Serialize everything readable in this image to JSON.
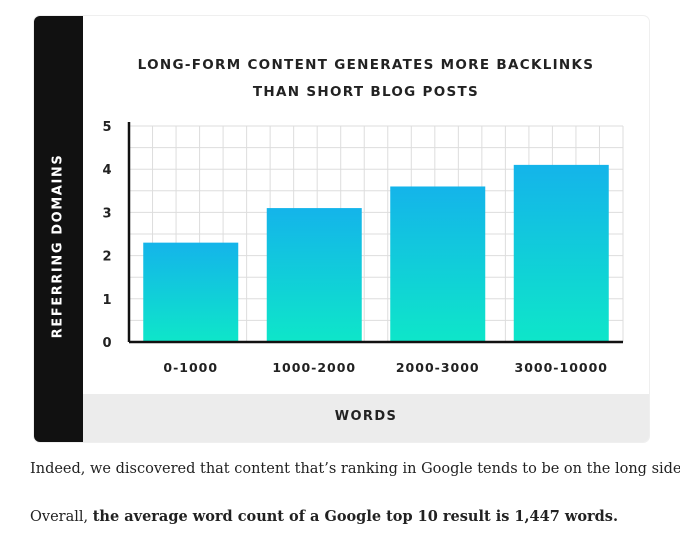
{
  "chart_data": {
    "type": "bar",
    "title_line1": "LONG-FORM CONTENT GENERATES MORE BACKLINKS",
    "title_line2": "THAN SHORT BLOG POSTS",
    "xlabel": "WORDS",
    "ylabel": "REFERRING DOMAINS",
    "categories": [
      "0-1000",
      "1000-2000",
      "2000-3000",
      "3000-10000"
    ],
    "values": [
      2.3,
      3.1,
      3.6,
      4.1
    ],
    "yticks": [
      "0",
      "1",
      "2",
      "3",
      "4",
      "5"
    ],
    "ylim": [
      0,
      5
    ],
    "grid": true,
    "colors": {
      "bar_top": "#14b4ea",
      "bar_bottom": "#0ee6c9",
      "grid": "#dddddd",
      "axis": "#111111"
    }
  },
  "text": {
    "para1": "Indeed, we discovered that content that’s ranking in Google tends to be on the long side.",
    "para2_prefix": "Overall, ",
    "para2_bold": "the average word count of a Google top 10 result is 1,447 words."
  }
}
